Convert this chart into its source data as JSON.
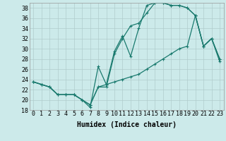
{
  "xlabel": "Humidex (Indice chaleur)",
  "bg_color": "#cceaea",
  "grid_color": "#b0cccc",
  "line_color": "#1a7a6e",
  "xlim": [
    -0.5,
    23.5
  ],
  "ylim": [
    18,
    39
  ],
  "xticks": [
    0,
    1,
    2,
    3,
    4,
    5,
    6,
    7,
    8,
    9,
    10,
    11,
    12,
    13,
    14,
    15,
    16,
    17,
    18,
    19,
    20,
    21,
    22,
    23
  ],
  "yticks": [
    18,
    20,
    22,
    24,
    26,
    28,
    30,
    32,
    34,
    36,
    38
  ],
  "line1": [
    23.5,
    23.0,
    22.5,
    21.0,
    21.0,
    21.0,
    20.0,
    19.0,
    22.5,
    22.5,
    29.0,
    32.0,
    34.5,
    35.0,
    37.0,
    39.0,
    39.0,
    38.5,
    38.5,
    38.0,
    36.5,
    30.5,
    32.0,
    28.0
  ],
  "line2": [
    23.5,
    23.0,
    22.5,
    21.0,
    21.0,
    21.0,
    20.0,
    19.0,
    22.5,
    23.0,
    29.5,
    32.5,
    28.5,
    34.0,
    38.5,
    39.0,
    39.0,
    38.5,
    38.5,
    38.0,
    36.5,
    30.5,
    32.0,
    28.0
  ],
  "line3": [
    23.5,
    23.0,
    22.5,
    21.0,
    21.0,
    21.0,
    20.0,
    18.5,
    26.5,
    23.0,
    23.5,
    24.0,
    24.5,
    25.0,
    26.0,
    27.0,
    28.0,
    29.0,
    30.0,
    30.5,
    36.5,
    30.5,
    32.0,
    27.5
  ],
  "tick_fontsize": 6,
  "xlabel_fontsize": 7,
  "xlabel_fontweight": "bold",
  "linewidth": 0.9,
  "markersize": 3
}
